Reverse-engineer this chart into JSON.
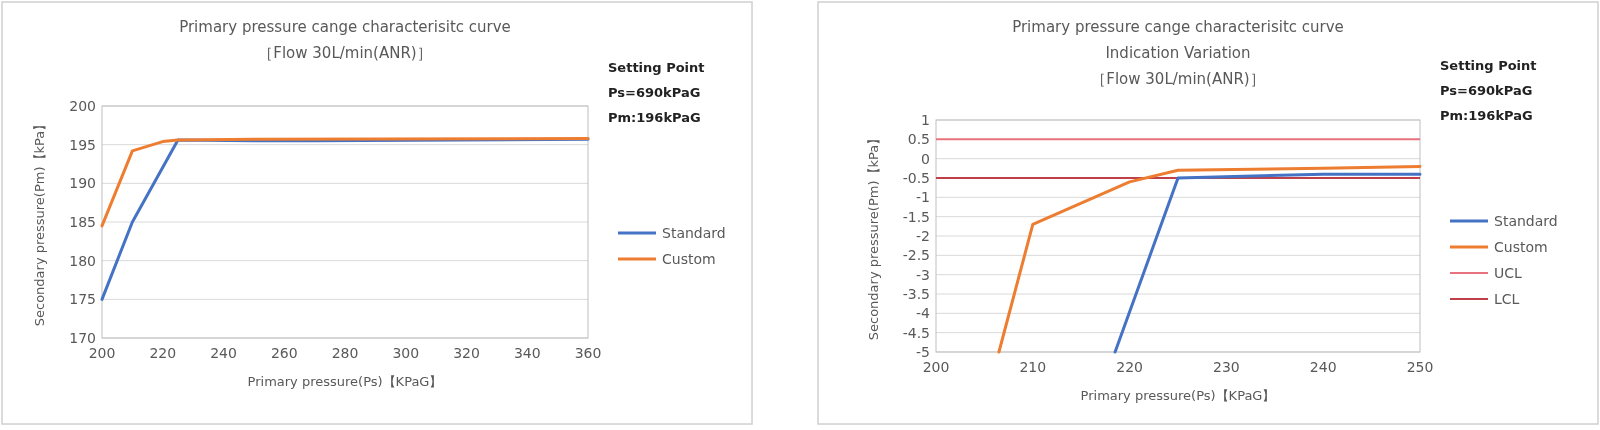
{
  "chart_data": [
    {
      "type": "line",
      "title": "Primary pressure cange characterisitc curve",
      "subtitle": "［Flow 30L/min(ANR)］",
      "xlabel": "Primary pressure(Ps)【KPaG】",
      "ylabel": "Secondary pressure(Pm)【kPa】",
      "series": [
        {
          "name": "Standard",
          "color": "#4472c4",
          "x": [
            200,
            210,
            225,
            250,
            270,
            360
          ],
          "values": [
            175,
            185,
            195.6,
            195.5,
            195.5,
            195.7
          ]
        },
        {
          "name": "Custom",
          "color": "#ed7d31",
          "x": [
            200,
            210,
            220,
            225,
            250,
            360
          ],
          "values": [
            184.5,
            194.2,
            195.4,
            195.6,
            195.7,
            195.8
          ]
        }
      ],
      "xlim": [
        200,
        360
      ],
      "xticks": [
        200,
        220,
        240,
        260,
        280,
        300,
        320,
        340,
        360
      ],
      "ylim": [
        170,
        200
      ],
      "yticks": [
        170,
        175,
        180,
        185,
        190,
        195,
        200
      ],
      "grid": "y",
      "legend": "right",
      "marker": "none",
      "line_style": "solid",
      "annotations": [
        "Setting Point",
        "Ps=690kPaG",
        "Pm:196kPaG"
      ]
    },
    {
      "type": "line",
      "title": "Primary pressure cange characterisitc curve",
      "subtitle": "Indication Variation\n［Flow 30L/min(ANR)］",
      "xlabel": "Primary pressure(Ps)【KPaG】",
      "ylabel": "Secondary pressure(Pm)【kPa】",
      "series": [
        {
          "name": "Standard",
          "color": "#4472c4",
          "x": [
            218.5,
            225,
            240,
            250
          ],
          "values": [
            -5,
            -0.5,
            -0.4,
            -0.4
          ]
        },
        {
          "name": "Custom",
          "color": "#ed7d31",
          "x": [
            206.5,
            210,
            220,
            225,
            240,
            250
          ],
          "values": [
            -5,
            -1.7,
            -0.6,
            -0.3,
            -0.25,
            -0.2
          ]
        }
      ],
      "ref_lines": [
        {
          "axis": "y",
          "value": 0.5,
          "label": "UCL",
          "color": "#e8737e"
        },
        {
          "axis": "y",
          "value": -0.5,
          "label": "LCL",
          "color": "#c0404a"
        }
      ],
      "xlim": [
        200,
        250
      ],
      "xticks": [
        200,
        210,
        220,
        230,
        240,
        250
      ],
      "ylim": [
        -5,
        1
      ],
      "yticks": [
        -5,
        -4.5,
        -4,
        -3.5,
        -3,
        -2.5,
        -2,
        -1.5,
        -1,
        -0.5,
        0,
        0.5,
        1
      ],
      "grid": "y",
      "legend": "right",
      "marker": "none",
      "line_style": "solid",
      "annotations": [
        "Setting Point",
        "Ps=690kPaG",
        "Pm:196kPaG"
      ]
    }
  ]
}
